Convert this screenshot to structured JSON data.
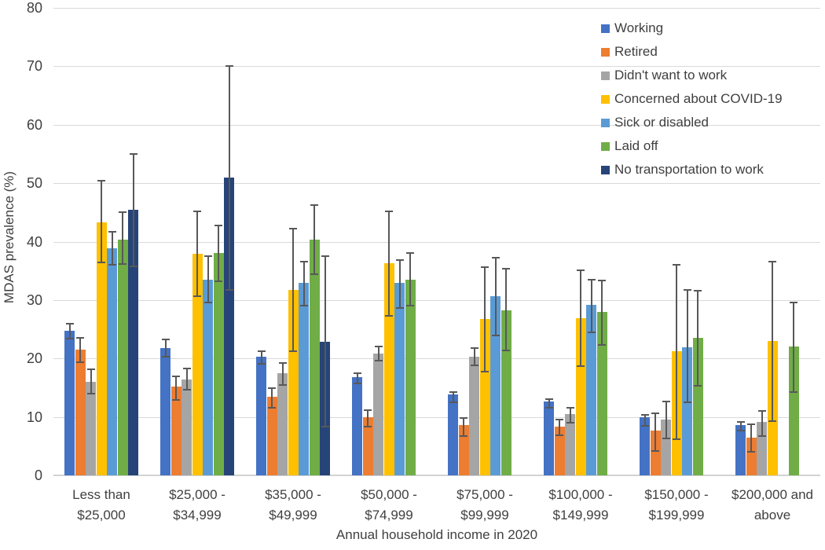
{
  "chart_data": {
    "type": "bar",
    "title": "",
    "xlabel": "Annual household income in 2020",
    "ylabel": "MDAS prevalence (%)",
    "ylim": [
      0,
      80
    ],
    "yticks": [
      0,
      10,
      20,
      30,
      40,
      50,
      60,
      70,
      80
    ],
    "grid": true,
    "legend_position": "top-right-inside",
    "error_bars": true,
    "categories": [
      [
        "Less than",
        "$25,000"
      ],
      [
        "$25,000 -",
        "$34,999"
      ],
      [
        "$35,000 -",
        "$49,999"
      ],
      [
        "$50,000 -",
        "$74,999"
      ],
      [
        "$75,000 -",
        "$99,999"
      ],
      [
        "$100,000 -",
        "$149,999"
      ],
      [
        "$150,000 -",
        "$199,999"
      ],
      [
        "$200,000 and",
        "above"
      ]
    ],
    "series": [
      {
        "name": "Working",
        "color": "#4472C4",
        "values": [
          24.7,
          21.8,
          20.3,
          16.8,
          13.8,
          12.7,
          9.9,
          8.6
        ],
        "err_low": [
          23.4,
          20.3,
          19.1,
          15.7,
          12.5,
          11.6,
          8.5,
          7.6
        ],
        "err_high": [
          26.0,
          23.2,
          21.2,
          17.5,
          14.3,
          13.1,
          10.3,
          9.1
        ]
      },
      {
        "name": "Retired",
        "color": "#ED7D31",
        "values": [
          21.5,
          15.2,
          13.4,
          10.0,
          8.6,
          8.3,
          7.7,
          6.4
        ],
        "err_low": [
          19.3,
          12.9,
          11.6,
          8.4,
          6.7,
          6.9,
          4.2,
          4.1
        ],
        "err_high": [
          23.5,
          16.9,
          14.9,
          11.2,
          9.8,
          9.6,
          10.6,
          8.8
        ]
      },
      {
        "name": "Didn't want to work",
        "color": "#A5A5A5",
        "values": [
          16.0,
          16.4,
          17.5,
          20.9,
          20.3,
          10.5,
          9.5,
          9.2
        ],
        "err_low": [
          14.0,
          14.7,
          15.5,
          19.6,
          18.8,
          9.0,
          6.3,
          6.7
        ],
        "err_high": [
          18.1,
          18.3,
          19.2,
          22.1,
          21.8,
          11.6,
          12.6,
          11.0
        ]
      },
      {
        "name": "Concerned about COVID-19",
        "color": "#FFC000",
        "values": [
          43.3,
          37.9,
          31.7,
          36.3,
          26.7,
          26.9,
          21.3,
          23.0
        ],
        "err_low": [
          36.5,
          30.7,
          21.2,
          27.3,
          17.8,
          18.7,
          6.2,
          9.3
        ],
        "err_high": [
          50.4,
          45.2,
          42.2,
          45.2,
          35.6,
          35.1,
          36.1,
          36.6
        ]
      },
      {
        "name": "Sick or disabled",
        "color": "#5B9BD5",
        "values": [
          38.8,
          33.5,
          32.9,
          32.9,
          30.6,
          29.2,
          21.9,
          null
        ],
        "err_low": [
          36.0,
          29.6,
          29.0,
          28.7,
          23.9,
          24.5,
          12.5,
          null
        ],
        "err_high": [
          41.7,
          37.5,
          36.6,
          36.9,
          37.3,
          33.5,
          31.7,
          null
        ]
      },
      {
        "name": "Laid off",
        "color": "#70AD47",
        "values": [
          40.3,
          38.1,
          40.3,
          33.5,
          28.2,
          28.0,
          23.5,
          22.0
        ],
        "err_low": [
          36.2,
          33.2,
          34.4,
          29.1,
          21.4,
          22.3,
          15.3,
          14.3
        ],
        "err_high": [
          45.0,
          42.8,
          46.2,
          38.1,
          35.3,
          33.4,
          31.6,
          29.6
        ]
      },
      {
        "name": "No transportation to work",
        "color": "#264478",
        "values": [
          45.4,
          50.9,
          22.9,
          null,
          null,
          null,
          null,
          null
        ],
        "err_low": [
          35.7,
          31.7,
          8.3,
          null,
          null,
          null,
          null,
          null
        ],
        "err_high": [
          55.0,
          70.0,
          37.5,
          null,
          null,
          null,
          null,
          null
        ]
      }
    ],
    "style": {
      "gridline_color": "#d9d9d9",
      "axis_line_color": "#d3d3d3",
      "error_bar_color": "#58585a",
      "text_color": "#404040"
    }
  }
}
